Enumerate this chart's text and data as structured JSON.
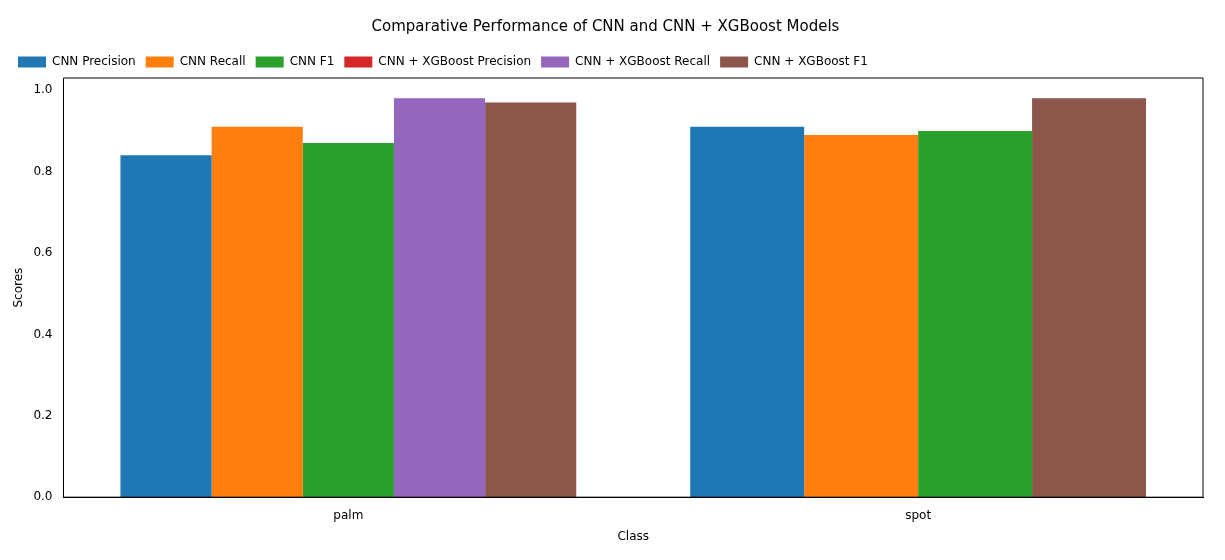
{
  "chart_data": {
    "type": "bar",
    "title": "Comparative Performance of CNN and CNN + XGBoost Models",
    "xlabel": "Class",
    "ylabel": "Scores",
    "categories": [
      "palm",
      "spot"
    ],
    "series": [
      {
        "name": "CNN Precision",
        "color": "#1f77b4",
        "values": [
          0.84,
          0.91
        ]
      },
      {
        "name": "CNN Recall",
        "color": "#ff7f0e",
        "values": [
          0.91,
          0.89
        ]
      },
      {
        "name": "CNN F1",
        "color": "#2ca02c",
        "values": [
          0.87,
          0.9
        ]
      },
      {
        "name": "CNN + XGBoost Precision",
        "color": "#d62728",
        "values": [
          null,
          null
        ]
      },
      {
        "name": "CNN + XGBoost Recall",
        "color": "#9467bd",
        "values": [
          0.98,
          null
        ]
      },
      {
        "name": "CNN + XGBoost F1",
        "color": "#8c564b",
        "values": [
          0.97,
          0.98
        ]
      }
    ],
    "ylim": [
      0,
      1.03
    ],
    "yticks": [
      {
        "value": 0,
        "label": "0.0"
      },
      {
        "value": 0.2,
        "label": "0.2"
      },
      {
        "value": 0.4,
        "label": "0.4"
      },
      {
        "value": 0.6,
        "label": "0.6"
      },
      {
        "value": 0.8,
        "label": "0.8"
      },
      {
        "value": 1,
        "label": "1.0"
      }
    ],
    "grid": false,
    "legend": "top left"
  }
}
